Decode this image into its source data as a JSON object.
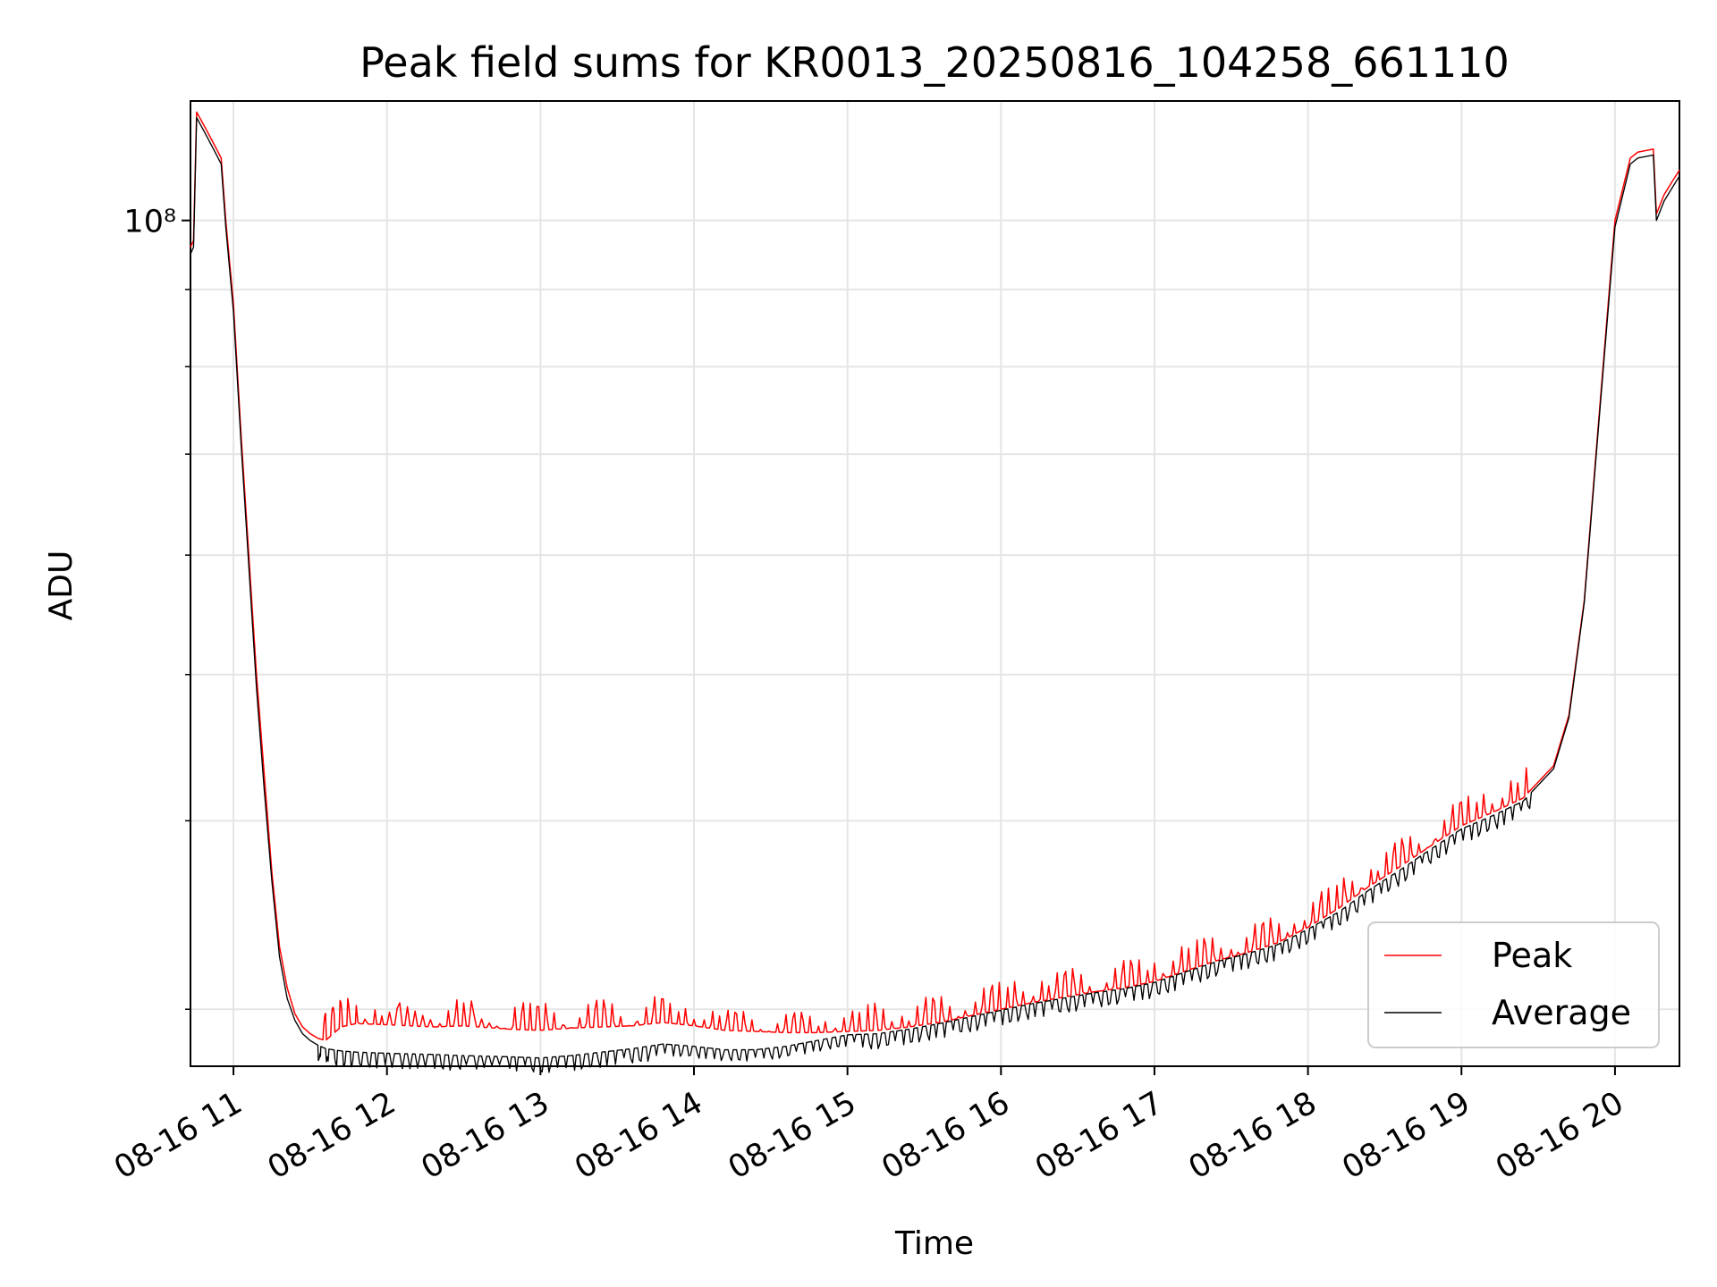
{
  "chart_data": {
    "type": "line",
    "title": "Peak field sums for KR0013_20250816_104258_661110",
    "xlabel": "Time",
    "ylabel": "ADU",
    "x_tick_labels": [
      "08-16 11",
      "08-16 12",
      "08-16 13",
      "08-16 14",
      "08-16 15",
      "08-16 16",
      "08-16 17",
      "08-16 18",
      "08-16 19",
      "08-16 20"
    ],
    "x_ticks_hours": [
      11,
      12,
      13,
      14,
      15,
      16,
      17,
      18,
      19,
      20
    ],
    "y_tick_label": "10⁸",
    "y_scale": "log",
    "xlim_hours": [
      10.72,
      20.42
    ],
    "ylim": [
      27500000,
      120000000
    ],
    "grid": true,
    "legend_position": "lower right",
    "series": [
      {
        "name": "Peak",
        "color": "#ff0000",
        "points": [
          [
            10.72,
            96000000
          ],
          [
            10.74,
            97000000
          ],
          [
            10.76,
            118000000
          ],
          [
            10.8,
            116000000
          ],
          [
            10.84,
            114000000
          ],
          [
            10.88,
            112000000
          ],
          [
            10.92,
            110000000
          ],
          [
            10.95,
            100000000
          ],
          [
            11.0,
            88000000
          ],
          [
            11.05,
            72000000
          ],
          [
            11.1,
            60000000
          ],
          [
            11.15,
            50000000
          ],
          [
            11.2,
            43000000
          ],
          [
            11.25,
            37000000
          ],
          [
            11.3,
            33000000
          ],
          [
            11.35,
            31000000
          ],
          [
            11.4,
            29800000
          ],
          [
            11.45,
            29200000
          ],
          [
            11.5,
            28900000
          ],
          [
            11.55,
            28700000
          ],
          [
            11.6,
            28600000
          ],
          [
            11.7,
            29200000
          ],
          [
            11.8,
            29350000
          ],
          [
            12.0,
            29300000
          ],
          [
            12.3,
            29200000
          ],
          [
            12.5,
            29250000
          ],
          [
            12.8,
            29100000
          ],
          [
            13.0,
            29050000
          ],
          [
            13.2,
            29150000
          ],
          [
            13.4,
            29200000
          ],
          [
            13.6,
            29250000
          ],
          [
            13.8,
            29400000
          ],
          [
            14.0,
            29250000
          ],
          [
            14.2,
            29050000
          ],
          [
            14.4,
            29000000
          ],
          [
            14.6,
            28950000
          ],
          [
            14.8,
            28950000
          ],
          [
            15.0,
            29000000
          ],
          [
            15.2,
            29050000
          ],
          [
            15.4,
            29200000
          ],
          [
            15.6,
            29400000
          ],
          [
            15.8,
            29700000
          ],
          [
            16.0,
            30000000
          ],
          [
            16.2,
            30300000
          ],
          [
            16.4,
            30550000
          ],
          [
            16.6,
            30800000
          ],
          [
            16.8,
            31000000
          ],
          [
            17.0,
            31300000
          ],
          [
            17.2,
            31800000
          ],
          [
            17.4,
            32300000
          ],
          [
            17.6,
            32700000
          ],
          [
            17.8,
            33200000
          ],
          [
            18.0,
            34000000
          ],
          [
            18.2,
            35000000
          ],
          [
            18.4,
            36200000
          ],
          [
            18.6,
            37300000
          ],
          [
            18.8,
            38500000
          ],
          [
            19.0,
            39700000
          ],
          [
            19.2,
            40500000
          ],
          [
            19.4,
            41400000
          ],
          [
            19.6,
            43500000
          ],
          [
            19.7,
            47000000
          ],
          [
            19.8,
            56000000
          ],
          [
            19.9,
            75000000
          ],
          [
            20.0,
            100000000
          ],
          [
            20.1,
            110000000
          ],
          [
            20.15,
            111000000
          ],
          [
            20.25,
            111500000
          ],
          [
            20.27,
            101000000
          ],
          [
            20.32,
            104000000
          ],
          [
            20.37,
            106000000
          ],
          [
            20.42,
            108000000
          ]
        ]
      },
      {
        "name": "Average",
        "color": "#000000",
        "points": [
          [
            10.72,
            95000000
          ],
          [
            10.74,
            96000000
          ],
          [
            10.76,
            117000000
          ],
          [
            10.8,
            115000000
          ],
          [
            10.84,
            113000000
          ],
          [
            10.88,
            111000000
          ],
          [
            10.92,
            109000000
          ],
          [
            10.95,
            99000000
          ],
          [
            11.0,
            87000000
          ],
          [
            11.05,
            71000000
          ],
          [
            11.1,
            59000000
          ],
          [
            11.15,
            49000000
          ],
          [
            11.2,
            42000000
          ],
          [
            11.25,
            36500000
          ],
          [
            11.3,
            32500000
          ],
          [
            11.35,
            30500000
          ],
          [
            11.4,
            29500000
          ],
          [
            11.45,
            28900000
          ],
          [
            11.5,
            28600000
          ],
          [
            11.55,
            28400000
          ],
          [
            11.6,
            28250000
          ],
          [
            11.7,
            28150000
          ],
          [
            11.8,
            28100000
          ],
          [
            12.0,
            28050000
          ],
          [
            12.3,
            28000000
          ],
          [
            12.5,
            27950000
          ],
          [
            12.8,
            27900000
          ],
          [
            13.0,
            27850000
          ],
          [
            13.2,
            27950000
          ],
          [
            13.4,
            28100000
          ],
          [
            13.6,
            28250000
          ],
          [
            13.8,
            28450000
          ],
          [
            14.0,
            28350000
          ],
          [
            14.2,
            28200000
          ],
          [
            14.4,
            28200000
          ],
          [
            14.6,
            28350000
          ],
          [
            14.8,
            28600000
          ],
          [
            15.0,
            28850000
          ],
          [
            15.2,
            28900000
          ],
          [
            15.4,
            29100000
          ],
          [
            15.6,
            29350000
          ],
          [
            15.8,
            29650000
          ],
          [
            16.0,
            29950000
          ],
          [
            16.2,
            30250000
          ],
          [
            16.4,
            30500000
          ],
          [
            16.6,
            30750000
          ],
          [
            16.8,
            30950000
          ],
          [
            17.0,
            31250000
          ],
          [
            17.2,
            31750000
          ],
          [
            17.4,
            32250000
          ],
          [
            17.6,
            32650000
          ],
          [
            17.8,
            33100000
          ],
          [
            18.0,
            33900000
          ],
          [
            18.2,
            34800000
          ],
          [
            18.4,
            36000000
          ],
          [
            18.6,
            37100000
          ],
          [
            18.8,
            38300000
          ],
          [
            19.0,
            39500000
          ],
          [
            19.2,
            40300000
          ],
          [
            19.4,
            41200000
          ],
          [
            19.6,
            43300000
          ],
          [
            19.7,
            46800000
          ],
          [
            19.8,
            55800000
          ],
          [
            19.9,
            74500000
          ],
          [
            20.0,
            99000000
          ],
          [
            20.1,
            109000000
          ],
          [
            20.15,
            110000000
          ],
          [
            20.25,
            110500000
          ],
          [
            20.27,
            100000000
          ],
          [
            20.32,
            103000000
          ],
          [
            20.37,
            105000000
          ],
          [
            20.42,
            107000000
          ]
        ]
      }
    ]
  }
}
